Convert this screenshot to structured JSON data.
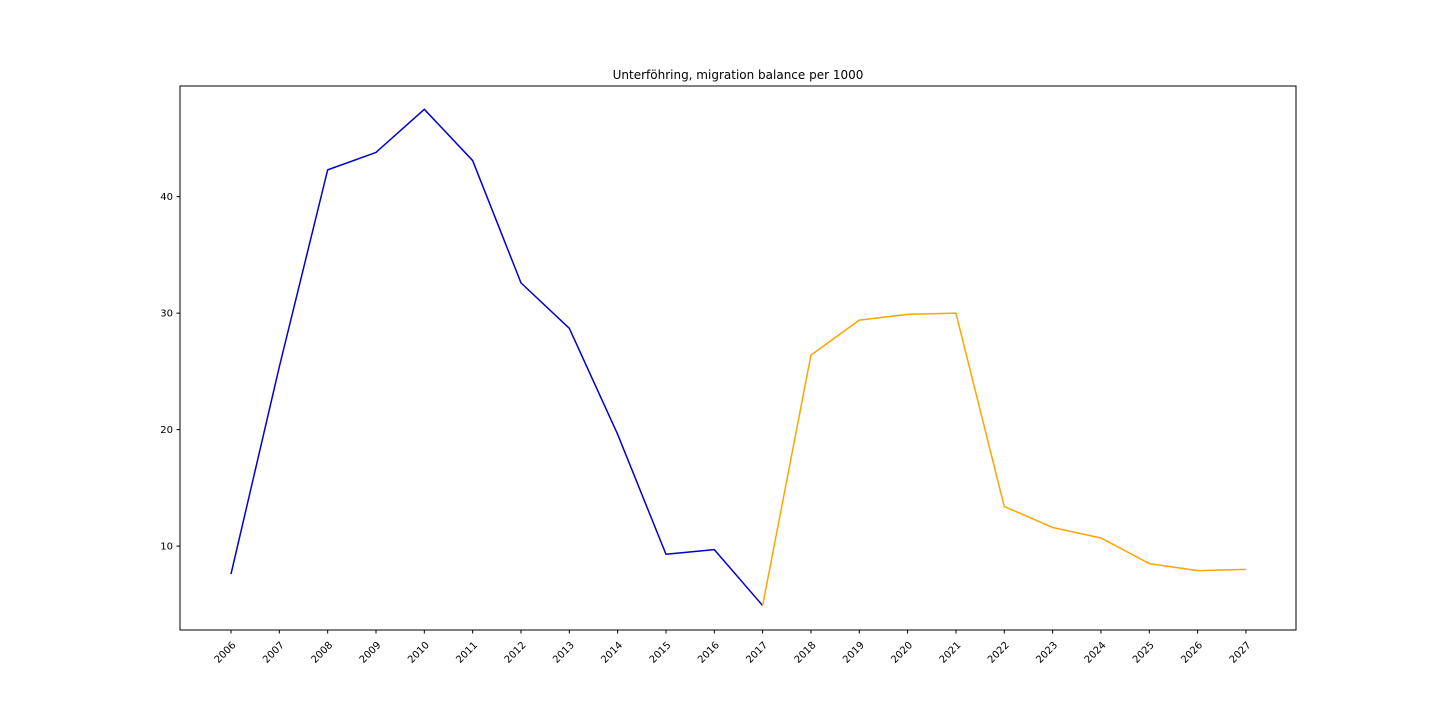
{
  "chart_data": {
    "type": "line",
    "title": "Unterföhring, migration balance per 1000",
    "xlabel": "",
    "ylabel": "",
    "ylim": [
      2.8,
      49.5
    ],
    "y_ticks": [
      "10",
      "20",
      "30",
      "40"
    ],
    "categories": [
      "2006",
      "2007",
      "2008",
      "2009",
      "2010",
      "2011",
      "2012",
      "2013",
      "2014",
      "2015",
      "2016",
      "2017",
      "2018",
      "2019",
      "2020",
      "2021",
      "2022",
      "2023",
      "2024",
      "2025",
      "2026",
      "2027"
    ],
    "grid": false,
    "legend": "none",
    "series": [
      {
        "color": "#0000cd",
        "x": [
          "2006",
          "2007",
          "2008",
          "2009",
          "2010",
          "2011",
          "2012",
          "2013",
          "2014",
          "2015",
          "2016",
          "2017"
        ],
        "values": [
          7.6,
          25.4,
          42.3,
          43.8,
          47.5,
          43.1,
          32.6,
          28.7,
          19.6,
          9.3,
          9.7,
          4.9
        ]
      },
      {
        "color": "#ffa500",
        "x": [
          "2017",
          "2018",
          "2019",
          "2020",
          "2021",
          "2022",
          "2023",
          "2024",
          "2025",
          "2026",
          "2027"
        ],
        "values": [
          4.9,
          26.4,
          29.4,
          29.9,
          30.0,
          13.4,
          11.6,
          10.7,
          8.5,
          7.9,
          8.0
        ]
      }
    ]
  }
}
